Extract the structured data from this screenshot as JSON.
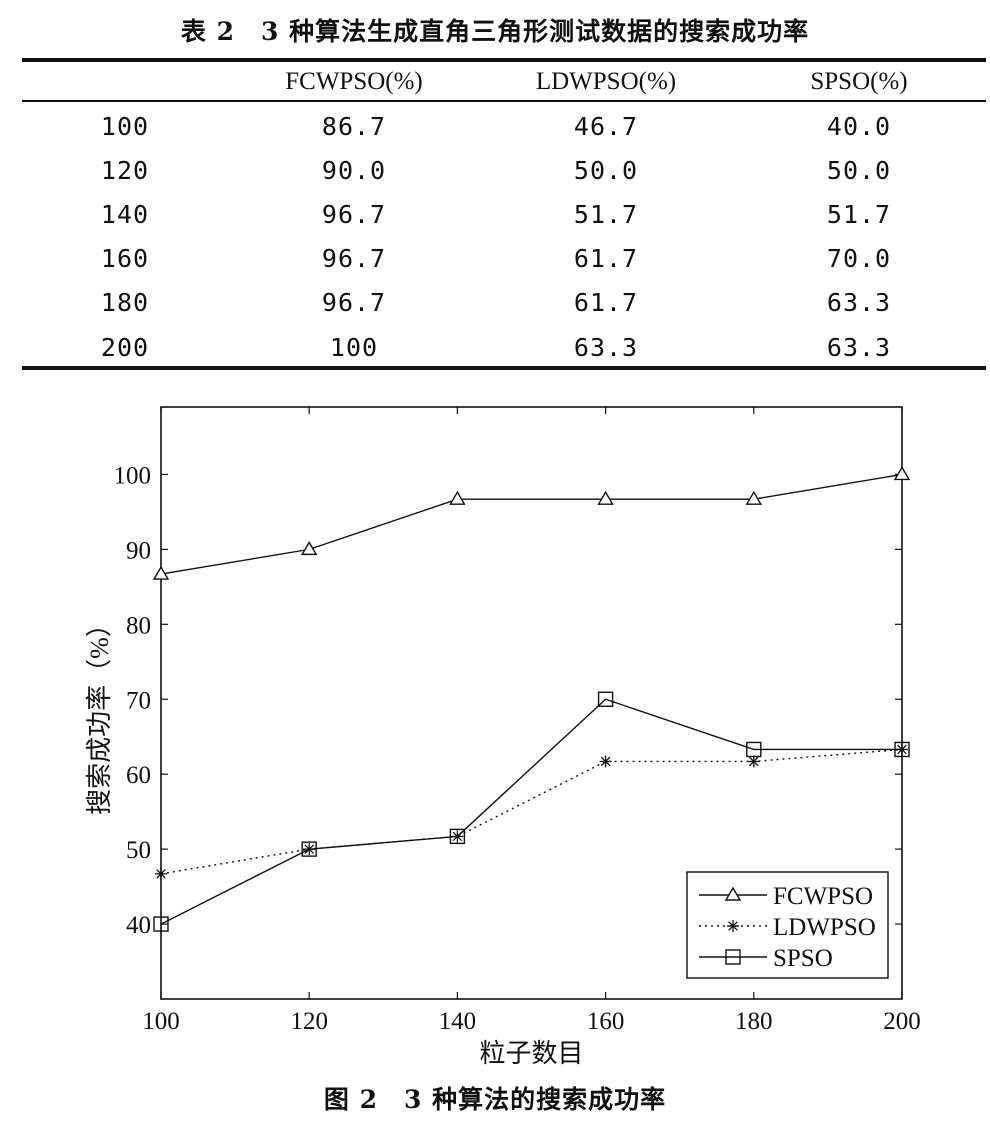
{
  "table": {
    "caption": "表 2　3 种算法生成直角三角形测试数据的搜索成功率",
    "headers": [
      "",
      "FCWPSO(%)",
      "LDWPSO(%)",
      "SPSO(%)"
    ],
    "rows": [
      [
        "100",
        "86.7",
        "46.7",
        "40.0"
      ],
      [
        "120",
        "90.0",
        "50.0",
        "50.0"
      ],
      [
        "140",
        "96.7",
        "51.7",
        "51.7"
      ],
      [
        "160",
        "96.7",
        "61.7",
        "70.0"
      ],
      [
        "180",
        "96.7",
        "61.7",
        "63.3"
      ],
      [
        "200",
        "100",
        "63.3",
        "63.3"
      ]
    ]
  },
  "chart_data": {
    "type": "line",
    "x": [
      100,
      120,
      140,
      160,
      180,
      200
    ],
    "series": [
      {
        "name": "FCWPSO",
        "values": [
          86.7,
          90.0,
          96.7,
          96.7,
          96.7,
          100
        ],
        "marker": "triangle",
        "line_style": "solid"
      },
      {
        "name": "LDWPSO",
        "values": [
          46.7,
          50.0,
          51.7,
          61.7,
          61.7,
          63.3
        ],
        "marker": "asterisk",
        "line_style": "dotted"
      },
      {
        "name": "SPSO",
        "values": [
          40.0,
          50.0,
          51.7,
          70.0,
          63.3,
          63.3
        ],
        "marker": "square",
        "line_style": "solid"
      }
    ],
    "xlabel": "粒子数目",
    "ylabel": "搜索成功率（%）",
    "xlim": [
      100,
      200
    ],
    "ylim": [
      30,
      109
    ],
    "xticks": [
      "100",
      "120",
      "140",
      "160",
      "180",
      "200"
    ],
    "yticks": [
      "40",
      "50",
      "60",
      "70",
      "80",
      "90",
      "100"
    ],
    "grid": false,
    "legend_position": "bottom-right",
    "line_color": "#111111"
  },
  "figure": {
    "caption": "图 2　3 种算法的搜索成功率"
  }
}
